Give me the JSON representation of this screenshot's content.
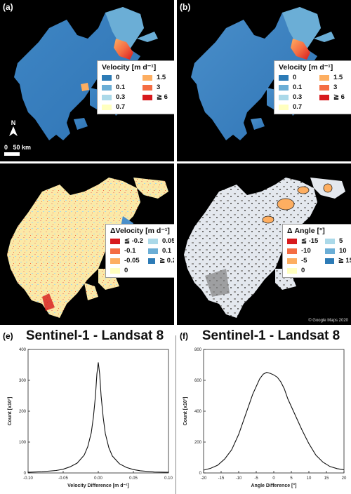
{
  "panels": {
    "a": {
      "label": "(a)"
    },
    "b": {
      "label": "(b)"
    },
    "c": {
      "label": "(c)"
    },
    "d": {
      "label": "(d)"
    },
    "e": {
      "label": "(e)"
    },
    "f": {
      "label": "(f)"
    }
  },
  "velocity_legend": {
    "title": "Velocity [m d⁻¹]",
    "items": [
      {
        "label": "0",
        "color": "#2c7bb6"
      },
      {
        "label": "1.5",
        "color": "#fdae61"
      },
      {
        "label": "0.1",
        "color": "#6baed6"
      },
      {
        "label": "3",
        "color": "#f46d43"
      },
      {
        "label": "0.3",
        "color": "#abd9e9"
      },
      {
        "label": "≧ 6",
        "color": "#d7191c"
      },
      {
        "label": "0.7",
        "color": "#ffffbf"
      }
    ]
  },
  "dvelocity_legend": {
    "title": "ΔVelocity [m d⁻¹]",
    "items": [
      {
        "label": "≦ -0.2",
        "color": "#d7191c"
      },
      {
        "label": "0.05",
        "color": "#abd9e9"
      },
      {
        "label": "-0.1",
        "color": "#f46d43"
      },
      {
        "label": "0.1",
        "color": "#6baed6"
      },
      {
        "label": "-0.05",
        "color": "#fdae61"
      },
      {
        "label": "≧ 0.2",
        "color": "#2c7bb6"
      },
      {
        "label": "0",
        "color": "#ffffbf"
      }
    ]
  },
  "dangle_legend": {
    "title": "Δ Angle [°]",
    "items": [
      {
        "label": "≦ -15",
        "color": "#d7191c"
      },
      {
        "label": "5",
        "color": "#abd9e9"
      },
      {
        "label": "-10",
        "color": "#f46d43"
      },
      {
        "label": "10",
        "color": "#6baed6"
      },
      {
        "label": "-5",
        "color": "#fdae61"
      },
      {
        "label": "≧ 15",
        "color": "#2c7bb6"
      },
      {
        "label": "0",
        "color": "#ffffbf"
      }
    ]
  },
  "map_a": {
    "north": "N",
    "scale": "0",
    "scale_km": "50 km"
  },
  "map_d": {
    "copyright": "© Google Maps 2020"
  },
  "chart_data": [
    {
      "panel": "(e)",
      "type": "line",
      "title": "Sentinel-1 - Landsat 8",
      "xlabel": "Velocity Difference [m d⁻¹]",
      "ylabel": "Count [x10³]",
      "xlim": [
        -0.1,
        0.1
      ],
      "ylim": [
        0,
        400
      ],
      "xticks": [
        "-0.10",
        "-0.05",
        "0.00",
        "0.05",
        "0.10"
      ],
      "xtick_values": [
        -0.1,
        -0.05,
        0.0,
        0.05,
        0.1
      ],
      "yticks": [
        "0",
        "100",
        "200",
        "300",
        "400"
      ],
      "ytick_values": [
        0,
        100,
        200,
        300,
        400
      ],
      "x": [
        -0.1,
        -0.08,
        -0.06,
        -0.05,
        -0.04,
        -0.03,
        -0.02,
        -0.015,
        -0.01,
        -0.007,
        -0.004,
        -0.002,
        0.0,
        0.002,
        0.004,
        0.007,
        0.01,
        0.015,
        0.02,
        0.03,
        0.04,
        0.05,
        0.06,
        0.08,
        0.1
      ],
      "y": [
        2,
        4,
        8,
        12,
        20,
        32,
        58,
        85,
        130,
        180,
        250,
        320,
        358,
        320,
        250,
        180,
        128,
        82,
        55,
        30,
        18,
        11,
        7,
        3,
        2
      ]
    },
    {
      "panel": "(f)",
      "type": "line",
      "title": "Sentinel-1 - Landsat 8",
      "xlabel": "Angle Difference [°]",
      "ylabel": "Count [x10³]",
      "xlim": [
        -20,
        20
      ],
      "ylim": [
        0,
        800
      ],
      "xticks": [
        "-20",
        "-15",
        "-10",
        "-5",
        "0",
        "5",
        "10",
        "15",
        "20"
      ],
      "xtick_values": [
        -20,
        -15,
        -10,
        -5,
        0,
        5,
        10,
        15,
        20
      ],
      "yticks": [
        "0",
        "200",
        "400",
        "600",
        "800"
      ],
      "ytick_values": [
        0,
        200,
        400,
        600,
        800
      ],
      "x": [
        -20,
        -18,
        -16,
        -14,
        -12,
        -10,
        -8,
        -6,
        -4,
        -3,
        -2,
        -1,
        0,
        1,
        2,
        3,
        4,
        6,
        8,
        10,
        12,
        14,
        16,
        18,
        20
      ],
      "y": [
        18,
        30,
        50,
        90,
        150,
        250,
        380,
        510,
        610,
        640,
        652,
        645,
        635,
        620,
        590,
        545,
        480,
        380,
        280,
        190,
        115,
        70,
        42,
        28,
        20
      ]
    }
  ]
}
